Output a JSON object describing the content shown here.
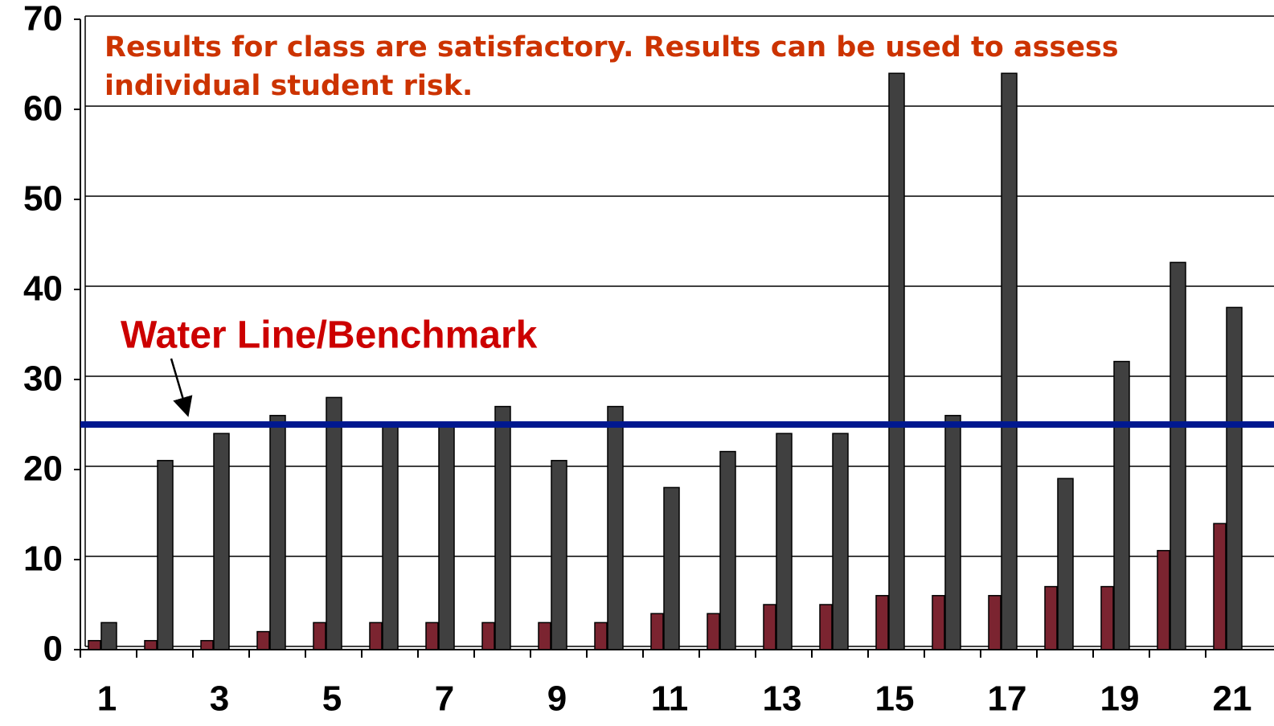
{
  "chart_data": {
    "type": "bar",
    "annotation": [
      "Results for class are satisfactory. Results can be used to assess",
      "individual student risk."
    ],
    "benchmark_label": "Water Line/Benchmark",
    "benchmark": 25,
    "categories": [
      1,
      null,
      3,
      null,
      5,
      null,
      7,
      null,
      9,
      null,
      11,
      null,
      13,
      null,
      15,
      null,
      17,
      null,
      19,
      null,
      21
    ],
    "series": [
      {
        "color": "#7b2430",
        "values": [
          1,
          1,
          1,
          2,
          3,
          3,
          3,
          3,
          3,
          3,
          4,
          4,
          5,
          5,
          6,
          6,
          6,
          7,
          7,
          11,
          14
        ]
      },
      {
        "color": "#404040",
        "values": [
          3,
          21,
          24,
          26,
          28,
          25,
          25,
          27,
          21,
          27,
          18,
          22,
          24,
          24,
          64,
          26,
          64,
          19,
          32,
          43,
          38
        ]
      }
    ],
    "ylim": [
      0,
      70
    ],
    "yticks": [
      0,
      10,
      20,
      30,
      40,
      50,
      60,
      70
    ],
    "grid": true
  }
}
